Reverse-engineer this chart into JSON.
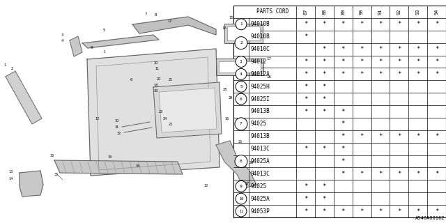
{
  "ref_code": "A940A00162",
  "bg_color": "#ffffff",
  "table_header_years": [
    "87",
    "88",
    "89",
    "90",
    "91",
    "92",
    "93",
    "94"
  ],
  "rows": [
    {
      "part": "94010B",
      "marks": [
        1,
        1,
        1,
        1,
        1,
        1,
        1,
        1
      ]
    },
    {
      "part": "94010B",
      "marks": [
        1,
        0,
        0,
        0,
        0,
        0,
        0,
        0
      ]
    },
    {
      "part": "94010C",
      "marks": [
        0,
        1,
        1,
        1,
        1,
        1,
        1,
        1
      ]
    },
    {
      "part": "94012",
      "marks": [
        1,
        1,
        1,
        1,
        1,
        1,
        1,
        1
      ]
    },
    {
      "part": "94012A",
      "marks": [
        1,
        1,
        1,
        1,
        1,
        1,
        1,
        1
      ]
    },
    {
      "part": "94025H",
      "marks": [
        1,
        1,
        0,
        0,
        0,
        0,
        0,
        0
      ]
    },
    {
      "part": "94025I",
      "marks": [
        1,
        1,
        0,
        0,
        0,
        0,
        0,
        0
      ]
    },
    {
      "part": "94013B",
      "marks": [
        1,
        1,
        1,
        0,
        0,
        0,
        0,
        0
      ]
    },
    {
      "part": "94025",
      "marks": [
        0,
        0,
        1,
        0,
        0,
        0,
        0,
        0
      ]
    },
    {
      "part": "94013B",
      "marks": [
        0,
        0,
        1,
        1,
        1,
        1,
        1,
        1
      ]
    },
    {
      "part": "94013C",
      "marks": [
        1,
        1,
        1,
        0,
        0,
        0,
        0,
        0
      ]
    },
    {
      "part": "94025A",
      "marks": [
        0,
        0,
        1,
        0,
        0,
        0,
        0,
        0
      ]
    },
    {
      "part": "94013C",
      "marks": [
        0,
        0,
        1,
        1,
        1,
        1,
        1,
        1
      ]
    },
    {
      "part": "94025",
      "marks": [
        1,
        1,
        0,
        0,
        0,
        0,
        0,
        0
      ]
    },
    {
      "part": "94025A",
      "marks": [
        1,
        1,
        0,
        0,
        0,
        0,
        0,
        0
      ]
    },
    {
      "part": "94053P",
      "marks": [
        1,
        1,
        1,
        1,
        1,
        1,
        1,
        1
      ]
    }
  ],
  "row_groups": [
    {
      "label": "1",
      "rows": [
        0
      ]
    },
    {
      "label": "2",
      "rows": [
        1,
        2
      ]
    },
    {
      "label": "3",
      "rows": [
        3
      ]
    },
    {
      "label": "4",
      "rows": [
        4
      ]
    },
    {
      "label": "5",
      "rows": [
        5
      ]
    },
    {
      "label": "6",
      "rows": [
        6
      ]
    },
    {
      "label": "7",
      "rows": [
        7,
        8,
        9
      ]
    },
    {
      "label": "8",
      "rows": [
        10,
        11,
        12
      ]
    },
    {
      "label": "9",
      "rows": [
        13
      ]
    },
    {
      "label": "10",
      "rows": [
        14
      ]
    },
    {
      "label": "11",
      "rows": [
        15
      ]
    }
  ]
}
